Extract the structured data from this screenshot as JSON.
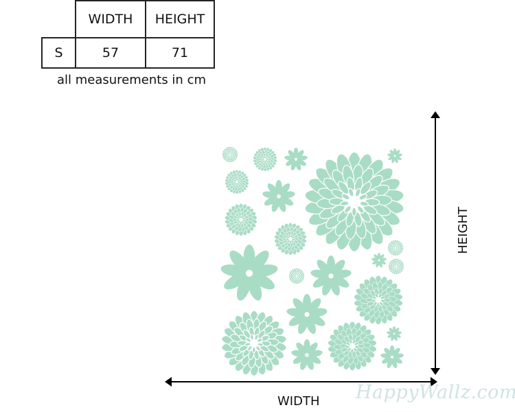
{
  "size_table": {
    "headers": [
      "",
      "WIDTH",
      "HEIGHT"
    ],
    "rows": [
      [
        "S",
        "57",
        "71"
      ]
    ]
  },
  "note": "all measurements in cm",
  "dimension_labels": {
    "width": "WIDTH",
    "height": "HEIGHT"
  },
  "watermark": "HappyWallz.com",
  "colors": {
    "flower": "#a9dcc5",
    "arrow": "#000000",
    "watermark": "#cfe3e3"
  }
}
